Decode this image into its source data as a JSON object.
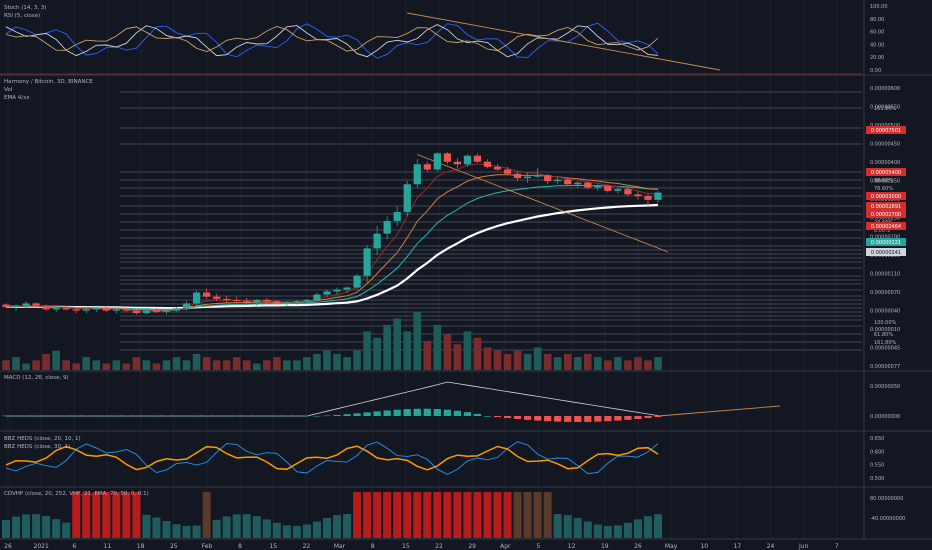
{
  "colors": {
    "background": "#131722",
    "grid": "#1e222d",
    "separator": "#363a45",
    "up": "#26a69a",
    "down": "#ef5350",
    "up_vol": "#1d5c57",
    "down_vol": "#7a2b2b",
    "text": "#b2b5be",
    "fib_line": "#6f7380",
    "trend": "#c98a4a",
    "red_label": "#d32f2f",
    "teal_label": "#26a69a",
    "white_label": "#d1d4dc",
    "ema_white": "#ffffff",
    "ema_teal": "#2ab7b0",
    "ema_orange": "#d97a3a",
    "ema_red": "#8b2d2d",
    "stoch_k": "#2962ff",
    "stoch_d": "#d1d4dc",
    "rsi": "#c9a26b",
    "bbr_blue": "#2196f3",
    "bbr_orange": "#ff9800",
    "rvi_red": "#b71c1c",
    "rvi_teal": "#1e5c5e",
    "rvi_brown": "#5a3a2a"
  },
  "panels": {
    "stoch": {
      "legend": [
        "Stoch (14, 3, 3)",
        "RSI (5, close)"
      ],
      "axis": [
        "100.00",
        "80.00",
        "60.00",
        "40.00",
        "20.00",
        "0.00"
      ]
    },
    "main": {
      "legend": [
        "Harmony / Bitcoin, 3D, BINANCE",
        "Vol",
        "EMA 4/xx"
      ],
      "axis": [
        "0.00000600",
        "0.00000550",
        "0.00000500",
        "0.00000450",
        "0.00000400",
        "0.00000350",
        "0.00000300",
        "0.00000250",
        "0.00000200",
        "0.00000150",
        "0.00000110",
        "0.00000070",
        "0.00000040",
        "0.00000010",
        "0.00000045",
        "0.00000077"
      ],
      "fib_labels": [
        "161.80%",
        "-27.00%",
        "100.00%",
        "88.60%",
        "78.60%",
        "61.80%",
        "50.00%",
        "38.20%",
        "23.60%",
        "0.00%",
        "100.00%",
        "61.80%",
        "161.80%"
      ],
      "price_tags": [
        {
          "text": "0.00007501",
          "color": "red"
        },
        {
          "text": "0.00005400",
          "color": "red"
        },
        {
          "text": "0.00003000",
          "color": "red"
        },
        {
          "text": "0.00002891",
          "color": "red"
        },
        {
          "text": "0.00002700",
          "color": "red"
        },
        {
          "text": "0.00002464",
          "color": "red"
        },
        {
          "text": "0.00000221",
          "color": "teal"
        },
        {
          "text": "0.00000241",
          "color": "white"
        }
      ]
    },
    "macd": {
      "legend": [
        "MACD (12, 26, close, 9)"
      ],
      "axis": [
        "0.00000050",
        "0.00000000"
      ]
    },
    "bbr": {
      "legend": [
        "BBZ HEDS (close, 20, 10, 1)",
        "BBZ HEDS (close, 30, 1)"
      ],
      "axis": [
        "0.650",
        "0.600",
        "0.550",
        "0.500"
      ]
    },
    "rvi": {
      "legend": [
        "CDVHP (close, 20, 252, VHP, 21, EMA, 70, 50, 0, 0.1)"
      ],
      "axis": [
        "80.00000000",
        "-40.00000000"
      ]
    }
  },
  "time_axis": [
    "26",
    "2021",
    "6",
    "11",
    "18",
    "25",
    "Feb",
    "8",
    "15",
    "22",
    "Mar",
    "8",
    "15",
    "22",
    "29",
    "Apr",
    "5",
    "12",
    "19",
    "26",
    "May",
    "10",
    "17",
    "24",
    "Jun",
    "7"
  ],
  "chart_data": {
    "type": "candlestick",
    "title": "Harmony / Bitcoin, 3D, BINANCE",
    "candles": [
      [
        7.9e-07,
        8e-07,
        7.6e-07,
        7.7e-07
      ],
      [
        7.7e-07,
        7.9e-07,
        7.4e-07,
        7.8e-07
      ],
      [
        7.8e-07,
        8.2e-07,
        7.6e-07,
        8e-07
      ],
      [
        8e-07,
        8.1e-07,
        7.7e-07,
        7.8e-07
      ],
      [
        7.8e-07,
        7.9e-07,
        7.4e-07,
        7.5e-07
      ],
      [
        7.5e-07,
        7.7e-07,
        7.3e-07,
        7.6e-07
      ],
      [
        7.6e-07,
        7.8e-07,
        7.4e-07,
        7.5e-07
      ],
      [
        7.5e-07,
        7.6e-07,
        7.2e-07,
        7.4e-07
      ],
      [
        7.4e-07,
        7.6e-07,
        7.2e-07,
        7.5e-07
      ],
      [
        7.5e-07,
        7.7e-07,
        7.3e-07,
        7.6e-07
      ],
      [
        7.6e-07,
        7.7e-07,
        7.3e-07,
        7.4e-07
      ],
      [
        7.4e-07,
        7.6e-07,
        7.2e-07,
        7.5e-07
      ],
      [
        7.5e-07,
        7.6e-07,
        7.3e-07,
        7.4e-07
      ],
      [
        7.4e-07,
        7.5e-07,
        7.1e-07,
        7.2e-07
      ],
      [
        7.2e-07,
        7.5e-07,
        7.1e-07,
        7.4e-07
      ],
      [
        7.4e-07,
        7.6e-07,
        7.2e-07,
        7.3e-07
      ],
      [
        7.3e-07,
        7.5e-07,
        7.1e-07,
        7.4e-07
      ],
      [
        7.4e-07,
        7.7e-07,
        7.3e-07,
        7.6e-07
      ],
      [
        7.6e-07,
        8.2e-07,
        7.4e-07,
        8e-07
      ],
      [
        8e-07,
        9.2e-07,
        7.8e-07,
        9e-07
      ],
      [
        9e-07,
        9.4e-07,
        8.4e-07,
        8.6e-07
      ],
      [
        8.6e-07,
        8.9e-07,
        8.2e-07,
        8.4e-07
      ],
      [
        8.4e-07,
        8.7e-07,
        8.1e-07,
        8.3e-07
      ],
      [
        8.3e-07,
        8.6e-07,
        8e-07,
        8.2e-07
      ],
      [
        8.2e-07,
        8.5e-07,
        7.9e-07,
        8.1e-07
      ],
      [
        8.1e-07,
        8.4e-07,
        7.8e-07,
        8.3e-07
      ],
      [
        8.3e-07,
        8.5e-07,
        8e-07,
        8.2e-07
      ],
      [
        8.2e-07,
        8.3e-07,
        7.9e-07,
        8e-07
      ],
      [
        8e-07,
        8.2e-07,
        7.8e-07,
        8.1e-07
      ],
      [
        8.1e-07,
        8.3e-07,
        7.9e-07,
        8.2e-07
      ],
      [
        8.2e-07,
        8.4e-07,
        8e-07,
        8.3e-07
      ],
      [
        8.3e-07,
        9e-07,
        8.2e-07,
        8.8e-07
      ],
      [
        8.8e-07,
        9.3e-07,
        8.6e-07,
        9.1e-07
      ],
      [
        9.1e-07,
        9.5e-07,
        8.8e-07,
        9.3e-07
      ],
      [
        9.3e-07,
        9.6e-07,
        9e-07,
        9.5e-07
      ],
      [
        9.5e-07,
        1.1e-06,
        9.3e-07,
        1.08e-06
      ],
      [
        1.08e-06,
        1.5e-06,
        1e-06,
        1.45e-06
      ],
      [
        1.45e-06,
        1.85e-06,
        1.35e-06,
        1.7e-06
      ],
      [
        1.7e-06,
        2.05e-06,
        1.6e-06,
        1.95e-06
      ],
      [
        1.95e-06,
        2.3e-06,
        1.85e-06,
        2.15e-06
      ],
      [
        2.15e-06,
        3e-06,
        2.05e-06,
        2.9e-06
      ],
      [
        2.9e-06,
        3.8e-06,
        2.8e-06,
        3.6e-06
      ],
      [
        3.6e-06,
        3.7e-06,
        3.3e-06,
        3.4e-06
      ],
      [
        3.4e-06,
        4.1e-06,
        3.35e-06,
        4.05e-06
      ],
      [
        4.05e-06,
        4.1e-06,
        3.6e-06,
        3.7e-06
      ],
      [
        3.7e-06,
        3.85e-06,
        3.45e-06,
        3.6e-06
      ],
      [
        3.6e-06,
        4e-06,
        3.5e-06,
        3.95e-06
      ],
      [
        3.95e-06,
        4.05e-06,
        3.65e-06,
        3.7e-06
      ],
      [
        3.7e-06,
        3.8e-06,
        3.45e-06,
        3.5e-06
      ],
      [
        3.5e-06,
        3.6e-06,
        3.35e-06,
        3.4e-06
      ],
      [
        3.4e-06,
        3.5e-06,
        3.2e-06,
        3.25e-06
      ],
      [
        3.25e-06,
        3.35e-06,
        3e-06,
        3.1e-06
      ],
      [
        3.1e-06,
        3.3e-06,
        2.95e-06,
        3.15e-06
      ],
      [
        3.15e-06,
        3.45e-06,
        3.1e-06,
        3.2e-06
      ],
      [
        3.2e-06,
        3.25e-06,
        2.9e-06,
        3e-06
      ],
      [
        3e-06,
        3.15e-06,
        2.9e-06,
        3.05e-06
      ],
      [
        3.05e-06,
        3.1e-06,
        2.85e-06,
        2.9e-06
      ],
      [
        2.9e-06,
        3e-06,
        2.8e-06,
        2.95e-06
      ],
      [
        2.95e-06,
        3e-06,
        2.75e-06,
        2.8e-06
      ],
      [
        2.8e-06,
        2.9e-06,
        2.7e-06,
        2.85e-06
      ],
      [
        2.85e-06,
        2.9e-06,
        2.65e-06,
        2.7e-06
      ],
      [
        2.7e-06,
        2.8e-06,
        2.62e-06,
        2.75e-06
      ],
      [
        2.75e-06,
        2.8e-06,
        2.55e-06,
        2.6e-06
      ],
      [
        2.6e-06,
        2.68e-06,
        2.45e-06,
        2.55e-06
      ],
      [
        2.55e-06,
        2.62e-06,
        2.3e-06,
        2.45e-06
      ],
      [
        2.45e-06,
        2.7e-06,
        2.38e-06,
        2.65e-06
      ]
    ],
    "volume": [
      3,
      4,
      2,
      3,
      5,
      6,
      3,
      2,
      4,
      3,
      2,
      3,
      2,
      4,
      3,
      2,
      3,
      4,
      3,
      5,
      4,
      3,
      3,
      4,
      3,
      2,
      3,
      4,
      3,
      3,
      4,
      5,
      6,
      5,
      4,
      6,
      12,
      10,
      14,
      16,
      12,
      18,
      9,
      14,
      11,
      8,
      12,
      10,
      7,
      6,
      5,
      6,
      5,
      7,
      5,
      4,
      5,
      4,
      5,
      4,
      3,
      4,
      3,
      4,
      3,
      4
    ],
    "ema_lines": [
      "white",
      "teal",
      "orange",
      "red"
    ]
  }
}
